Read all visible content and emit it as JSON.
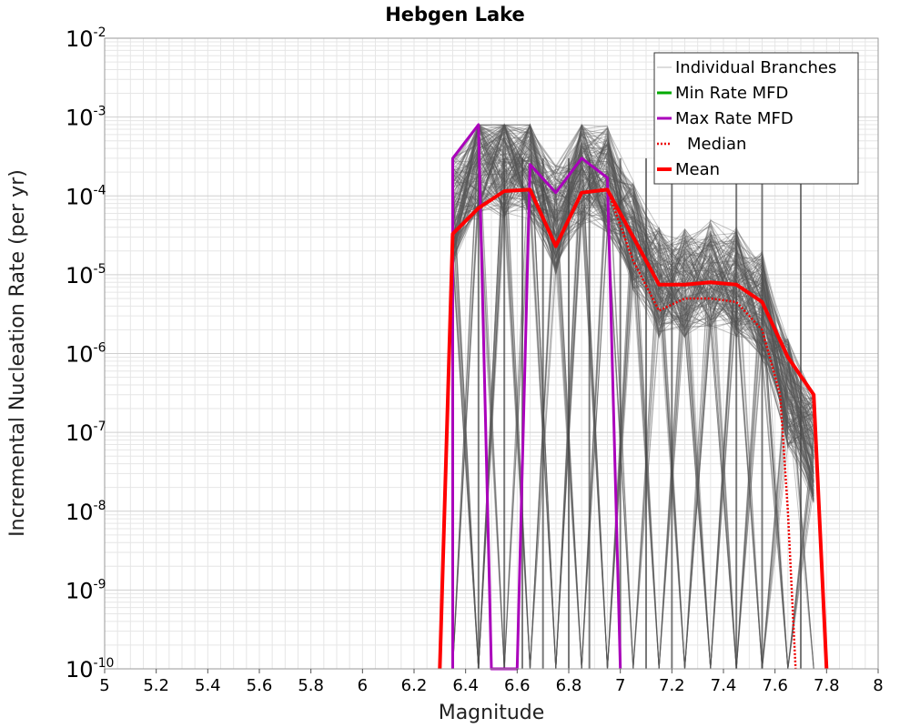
{
  "chart_data": {
    "type": "line",
    "title": "Hebgen Lake",
    "xlabel": "Magnitude",
    "ylabel": "Incremental Nucleation Rate (per yr)",
    "xlim": [
      5,
      8
    ],
    "ylim": [
      1e-10,
      0.01
    ],
    "yscale": "log",
    "grid": true,
    "legend_position": "top-right",
    "x_ticks": [
      5,
      5.2,
      5.4,
      5.6,
      5.8,
      6,
      6.2,
      6.4,
      6.6,
      6.8,
      7,
      7.2,
      7.4,
      7.6,
      7.8,
      8
    ],
    "x_tick_labels": [
      "5",
      "5.2",
      "5.4",
      "5.6",
      "5.8",
      "6",
      "6.2",
      "6.4",
      "6.6",
      "6.8",
      "7",
      "7.2",
      "7.4",
      "7.6",
      "7.8",
      "8"
    ],
    "y_tick_exponents": [
      "-2",
      "-3",
      "-4",
      "-5",
      "-6",
      "-7",
      "-8",
      "-9",
      "-10"
    ],
    "y_tick_base": "10",
    "colors": {
      "branches": "#555555",
      "min": "#00aa00",
      "max": "#aa00bb",
      "median": "#ee0000",
      "mean": "#ff0000"
    },
    "legend": [
      {
        "key": "branches",
        "label": "Individual Branches"
      },
      {
        "key": "min",
        "label": "Min Rate MFD"
      },
      {
        "key": "max",
        "label": "Max Rate MFD"
      },
      {
        "key": "median",
        "label": "Median"
      },
      {
        "key": "mean",
        "label": "Mean"
      }
    ],
    "series": [
      {
        "name": "Mean",
        "key": "mean",
        "x": [
          6.3,
          6.35,
          6.45,
          6.55,
          6.65,
          6.75,
          6.85,
          6.95,
          7.05,
          7.15,
          7.25,
          7.35,
          7.45,
          7.55,
          7.65,
          7.75,
          7.8
        ],
        "values": [
          1e-10,
          3.3e-05,
          7e-05,
          0.000115,
          0.00012,
          2.3e-05,
          0.00011,
          0.00012,
          3e-05,
          7.5e-06,
          7.5e-06,
          8e-06,
          7.5e-06,
          4.5e-06,
          9e-07,
          3e-07,
          1e-10
        ]
      },
      {
        "name": "Median",
        "key": "median",
        "x": [
          6.3,
          6.35,
          6.45,
          6.55,
          6.65,
          6.75,
          6.85,
          6.95,
          7.05,
          7.15,
          7.25,
          7.35,
          7.45,
          7.55,
          7.62,
          7.65,
          7.68
        ],
        "values": [
          1e-10,
          3.3e-05,
          7e-05,
          0.000115,
          0.00012,
          2.3e-05,
          0.00011,
          0.00012,
          1.5e-05,
          3.5e-06,
          5e-06,
          5e-06,
          4.5e-06,
          2e-06,
          3e-07,
          1e-08,
          1e-10
        ]
      },
      {
        "name": "Max Rate MFD",
        "key": "max",
        "x": [
          6.35,
          6.35,
          6.45,
          6.5,
          6.6,
          6.65,
          6.75,
          6.85,
          6.95,
          7.0
        ],
        "values": [
          1e-10,
          0.0003,
          0.0008,
          1e-10,
          1e-10,
          0.00025,
          0.00011,
          0.0003,
          0.00017,
          1e-10
        ]
      }
    ]
  }
}
